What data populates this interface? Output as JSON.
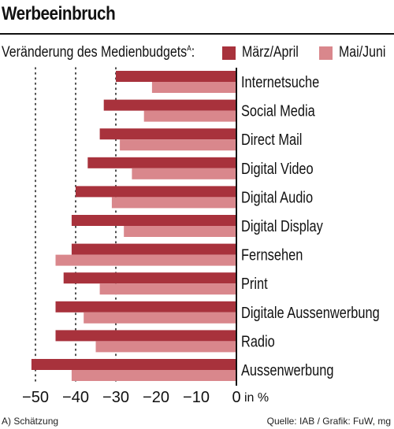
{
  "title": "Werbeeinbruch",
  "subtitle": "Veränderung des Medienbudgets",
  "subtitle_sup": "A",
  "subtitle_suffix": ":",
  "footnote": "A) Schätzung",
  "source": "Quelle: IAB / Grafik: FuW, mg",
  "colors": {
    "series1": "#a8323c",
    "series2": "#d9878c",
    "text": "#111111"
  },
  "chart_data": {
    "type": "bar",
    "orientation": "horizontal",
    "categories": [
      "Internetsuche",
      "Social Media",
      "Direct Mail",
      "Digital Video",
      "Digital Audio",
      "Digital Display",
      "Fernsehen",
      "Print",
      "Digitale Aussenwerbung",
      "Radio",
      "Aussenwerbung"
    ],
    "series": [
      {
        "name": "März/April",
        "values": [
          -30,
          -33,
          -34,
          -37,
          -40,
          -41,
          -41,
          -43,
          -45,
          -45,
          -51
        ]
      },
      {
        "name": "Mai/Juni",
        "values": [
          -21,
          -23,
          -29,
          -26,
          -31,
          -28,
          -45,
          -34,
          -38,
          -35,
          -41
        ]
      }
    ],
    "xlim": [
      -52,
      0
    ],
    "xticks": [
      -50,
      -40,
      -30,
      -20,
      -10,
      0
    ],
    "xtick_labels": [
      "−50",
      "−40",
      "−30",
      "−20",
      "−10",
      "0"
    ],
    "unit_label": "in %",
    "gridlines": [
      -50,
      -40,
      -30
    ],
    "grid": "dotted",
    "legend": "top-right"
  }
}
